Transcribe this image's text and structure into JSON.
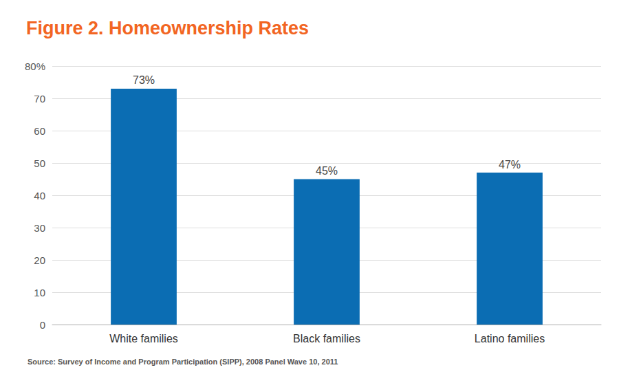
{
  "chart_data": {
    "type": "bar",
    "title": "Figure 2. Homeownership Rates",
    "source": "Source: Survey of Income and Program Participation (SIPP), 2008 Panel Wave 10, 2011",
    "categories": [
      "White families",
      "Black families",
      "Latino families"
    ],
    "values": [
      73,
      45,
      47
    ],
    "value_labels": [
      "73%",
      "45%",
      "47%"
    ],
    "color": "#0b6db3",
    "ylim": [
      0,
      80
    ],
    "yticks": [
      0,
      10,
      20,
      30,
      40,
      50,
      60,
      70,
      {
        "value": 80,
        "label": "80%"
      }
    ],
    "grid": true,
    "data_labels": true
  }
}
